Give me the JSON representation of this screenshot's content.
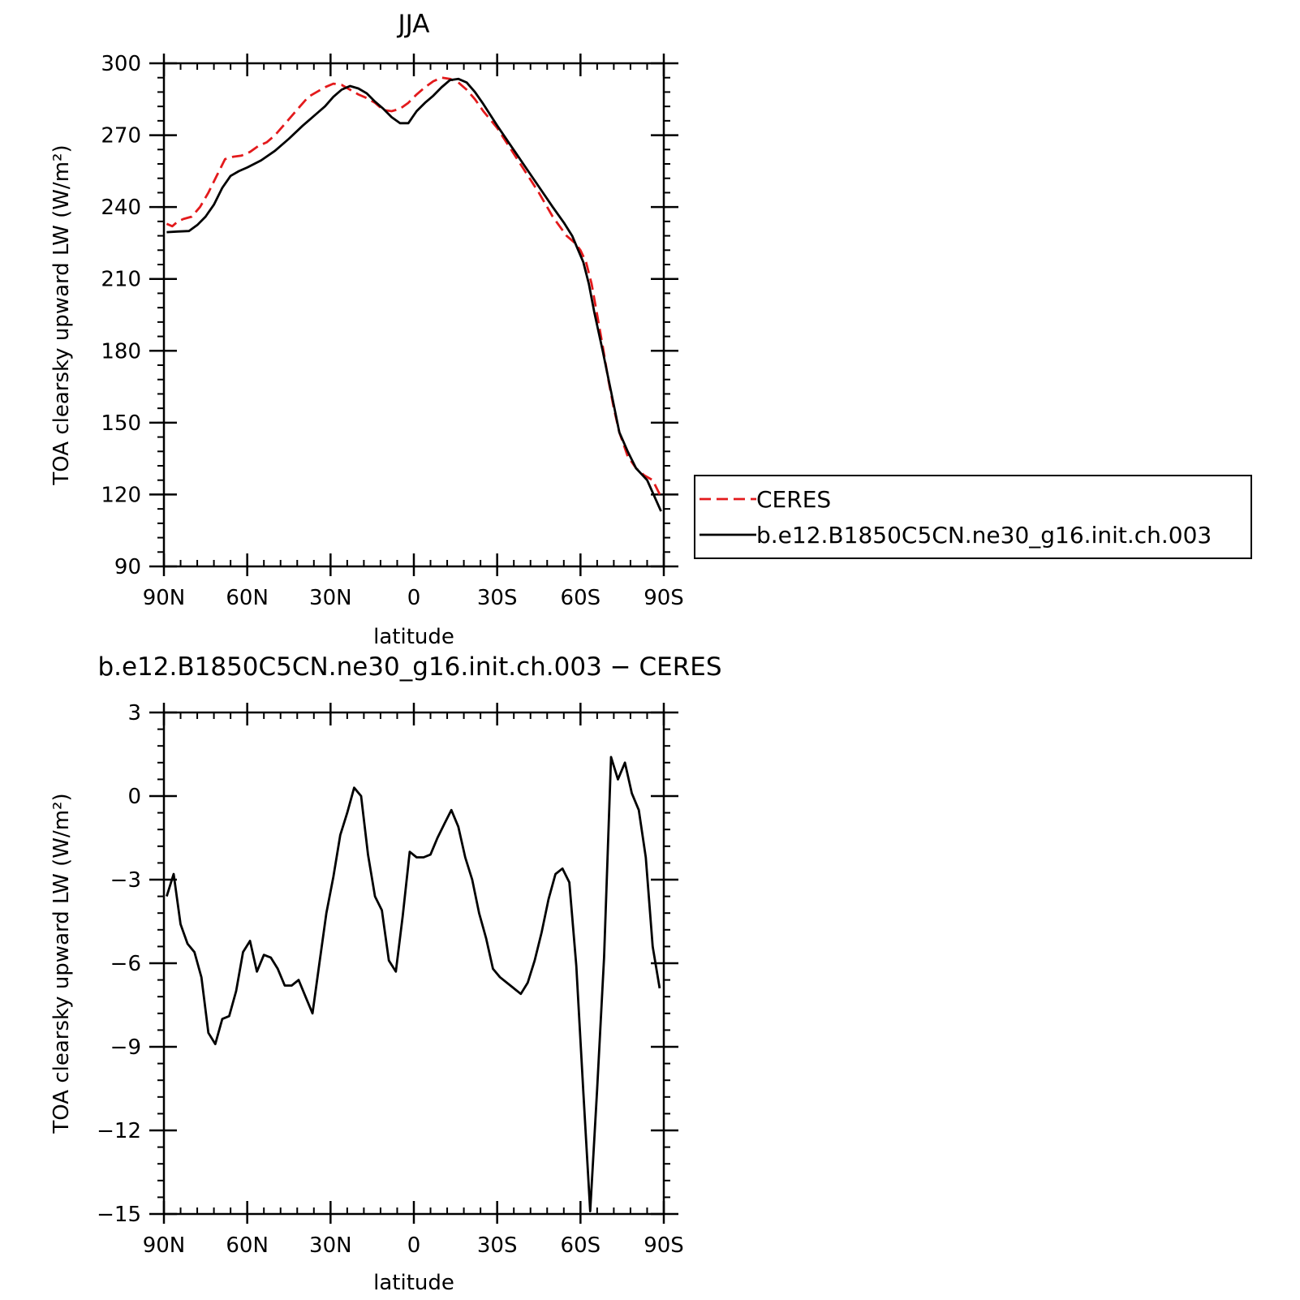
{
  "chart_data": [
    {
      "type": "line",
      "title": "JJA",
      "xlabel": "latitude",
      "ylabel": "TOA clearsky upward LW (W/m²)",
      "xlim": [
        90,
        -90
      ],
      "ylim": [
        90,
        300
      ],
      "x_ticks": [
        {
          "value": 90,
          "label": "90N"
        },
        {
          "value": 60,
          "label": "60N"
        },
        {
          "value": 30,
          "label": "30N"
        },
        {
          "value": 0,
          "label": "0"
        },
        {
          "value": -30,
          "label": "30S"
        },
        {
          "value": -60,
          "label": "60S"
        },
        {
          "value": -90,
          "label": "90S"
        }
      ],
      "y_ticks": [
        {
          "value": 90,
          "label": "90"
        },
        {
          "value": 120,
          "label": "120"
        },
        {
          "value": 150,
          "label": "150"
        },
        {
          "value": 180,
          "label": "180"
        },
        {
          "value": 210,
          "label": "210"
        },
        {
          "value": 240,
          "label": "240"
        },
        {
          "value": 270,
          "label": "270"
        },
        {
          "value": 300,
          "label": "300"
        }
      ],
      "legend": {
        "placement": "right",
        "entries": [
          "CERES",
          "b.e12.B1850C5CN.ne30_g16.init.ch.003"
        ]
      },
      "series": [
        {
          "name": "CERES",
          "color": "#e31a1c",
          "dash": "dashed",
          "x": [
            89,
            87,
            85,
            83,
            80,
            77,
            74,
            71,
            68,
            65,
            62,
            59,
            56,
            53,
            50,
            47,
            44,
            41,
            38,
            35,
            32,
            29,
            26,
            23,
            20,
            17,
            14,
            11,
            8,
            5,
            2,
            -1,
            -4,
            -7,
            -10,
            -13,
            -16,
            -19,
            -22,
            -25,
            -30,
            -35,
            -40,
            -45,
            -50,
            -55,
            -58,
            -60,
            -62,
            -64,
            -66,
            -68,
            -70,
            -72,
            -74,
            -77,
            -80,
            -83,
            -86,
            -89
          ],
          "y": [
            233,
            232,
            234,
            235,
            236,
            240,
            246,
            253,
            260,
            261,
            261.5,
            263,
            265.5,
            267,
            270,
            274,
            278,
            282,
            286,
            288,
            290,
            291.5,
            291,
            289,
            287,
            285.5,
            283.5,
            280.5,
            280,
            281,
            283.5,
            287,
            290,
            292.5,
            294,
            293.5,
            292,
            289,
            285,
            280,
            273,
            264,
            255,
            246,
            236,
            228,
            225,
            222,
            217,
            208,
            195,
            182,
            168,
            156,
            146,
            136,
            131,
            128,
            126,
            119
          ]
        },
        {
          "name": "b.e12.B1850C5CN.ne30_g16.init.ch.003",
          "color": "#000000",
          "dash": "solid",
          "x": [
            89,
            85,
            81,
            78,
            75,
            72,
            69,
            66,
            63,
            60,
            55,
            50,
            45,
            40,
            35,
            32,
            29,
            26,
            23,
            20,
            17,
            14,
            11,
            8,
            5,
            2,
            -1,
            -4,
            -7,
            -10,
            -13,
            -16,
            -19,
            -22,
            -25,
            -30,
            -35,
            -40,
            -45,
            -50,
            -54,
            -57,
            -59,
            -61,
            -63,
            -65,
            -68,
            -71,
            -74,
            -77,
            -80,
            -84,
            -89
          ],
          "y": [
            229.5,
            229.8,
            230,
            232.5,
            236,
            241,
            248,
            253,
            255,
            256.5,
            259.5,
            263.5,
            268.5,
            274,
            279,
            282,
            286,
            289,
            290.5,
            289.5,
            287.5,
            284,
            281,
            277.5,
            275,
            275,
            280,
            283.5,
            286.5,
            290,
            293,
            293.5,
            292,
            288,
            283,
            274,
            265.5,
            257,
            248.5,
            240,
            233.5,
            228,
            222.5,
            217,
            208,
            196,
            180,
            163,
            146,
            138,
            131,
            126,
            113
          ]
        }
      ]
    },
    {
      "type": "line",
      "title": "b.e12.B1850C5CN.ne30_g16.init.ch.003 − CERES",
      "xlabel": "latitude",
      "ylabel": "TOA clearsky upward LW (W/m²)",
      "xlim": [
        90,
        -90
      ],
      "ylim": [
        -15,
        3
      ],
      "x_ticks": [
        {
          "value": 90,
          "label": "90N"
        },
        {
          "value": 60,
          "label": "60N"
        },
        {
          "value": 30,
          "label": "30N"
        },
        {
          "value": 0,
          "label": "0"
        },
        {
          "value": -30,
          "label": "30S"
        },
        {
          "value": -60,
          "label": "60S"
        },
        {
          "value": -90,
          "label": "90S"
        }
      ],
      "y_ticks": [
        {
          "value": 3,
          "label": "3"
        },
        {
          "value": 0,
          "label": "0"
        },
        {
          "value": -3,
          "label": "−3"
        },
        {
          "value": -6,
          "label": "−6"
        },
        {
          "value": -9,
          "label": "−9"
        },
        {
          "value": -12,
          "label": "−12"
        },
        {
          "value": -15,
          "label": "−15"
        }
      ],
      "series": [
        {
          "color": "#000000",
          "dash": "solid",
          "x": [
            89,
            86.5,
            84,
            81.5,
            79,
            76.5,
            74,
            71.5,
            69,
            66.5,
            64,
            61.5,
            59,
            56.5,
            54,
            51.5,
            49,
            46.5,
            44,
            41.5,
            39,
            36.5,
            34,
            31.5,
            29,
            26.5,
            24,
            21.5,
            19,
            16.5,
            14,
            11.5,
            9,
            6.5,
            4,
            1.5,
            -1,
            -3.5,
            -6,
            -8.5,
            -11,
            -13.5,
            -16,
            -18.5,
            -21,
            -23.5,
            -26,
            -28.5,
            -31,
            -33.5,
            -36,
            -38.5,
            -41,
            -43.5,
            -46,
            -48.5,
            -51,
            -53.5,
            -56,
            -58.5,
            -61,
            -63.5,
            -66,
            -68.5,
            -71,
            -73.5,
            -76,
            -78.5,
            -81,
            -83.5,
            -86,
            -88.5
          ],
          "y": [
            -3.6,
            -2.8,
            -4.6,
            -5.3,
            -5.6,
            -6.5,
            -8.5,
            -8.9,
            -8.0,
            -7.9,
            -7.0,
            -5.6,
            -5.2,
            -6.3,
            -5.7,
            -5.8,
            -6.2,
            -6.8,
            -6.8,
            -6.6,
            -7.2,
            -7.8,
            -6.0,
            -4.2,
            -2.9,
            -1.4,
            -0.6,
            0.3,
            0.0,
            -2.1,
            -3.6,
            -4.1,
            -5.9,
            -6.3,
            -4.3,
            -2.0,
            -2.2,
            -2.2,
            -2.1,
            -1.5,
            -1.0,
            -0.5,
            -1.1,
            -2.2,
            -3.0,
            -4.2,
            -5.1,
            -6.2,
            -6.5,
            -6.7,
            -6.9,
            -7.1,
            -6.7,
            -5.9,
            -4.9,
            -3.7,
            -2.8,
            -2.6,
            -3.1,
            -6.1,
            -10.6,
            -14.9,
            -10.5,
            -5.8,
            1.4,
            0.6,
            1.2,
            0.1,
            -0.5,
            -2.2,
            -5.4,
            -6.9
          ]
        }
      ]
    }
  ]
}
